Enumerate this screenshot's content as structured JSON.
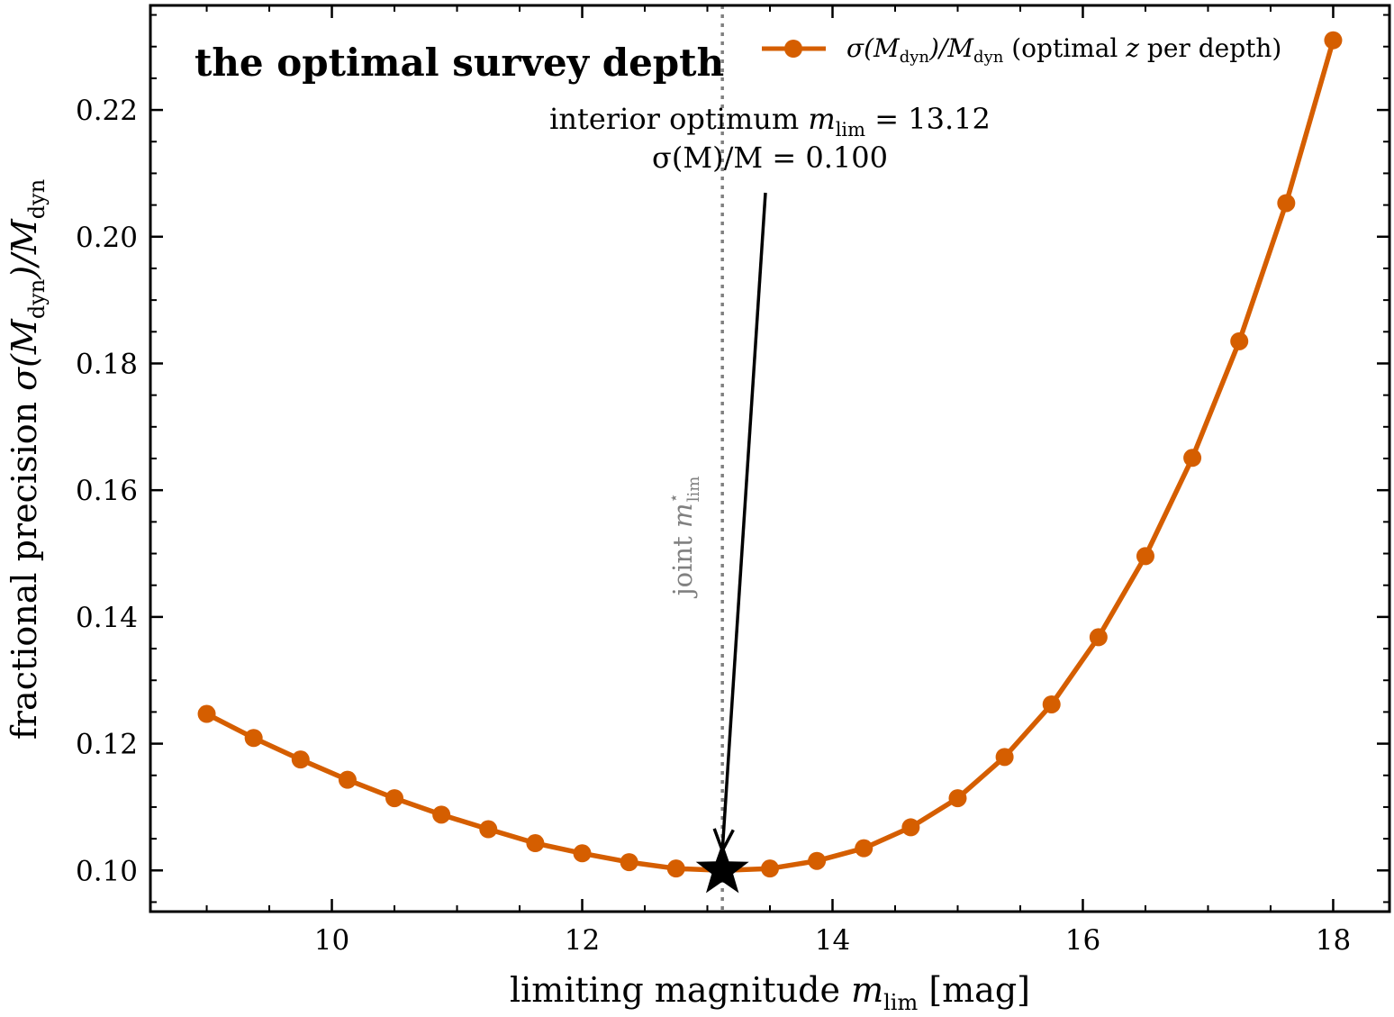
{
  "chart_data": {
    "type": "line",
    "title": "the optimal survey depth",
    "xlabel": {
      "main": "limiting magnitude  ",
      "sym": "m",
      "sub": "lim",
      "unit": "  [mag]"
    },
    "ylabel": {
      "main": "fractional precision  ",
      "sym": "σ(M",
      "sub": "dyn",
      "mid": ")/M",
      "sub2": "dyn"
    },
    "xlim": [
      8.55,
      18.45
    ],
    "ylim": [
      0.0935,
      0.2365
    ],
    "xticks": [
      10,
      12,
      14,
      16,
      18
    ],
    "xtick_labels": [
      "10",
      "12",
      "14",
      "16",
      "18"
    ],
    "yticks": [
      0.1,
      0.12,
      0.14,
      0.16,
      0.18,
      0.2,
      0.22
    ],
    "ytick_labels": [
      "0.10",
      "0.12",
      "0.14",
      "0.16",
      "0.18",
      "0.20",
      "0.22"
    ],
    "grid": false,
    "legend_position": "top-right",
    "series": [
      {
        "name": "σ(M_dyn)/M_dyn (optimal z per depth)",
        "color": "#d55e00",
        "marker": "circle",
        "x": [
          9.0,
          9.375,
          9.75,
          10.125,
          10.5,
          10.875,
          11.25,
          11.625,
          12.0,
          12.375,
          12.75,
          13.125,
          13.5,
          13.875,
          14.25,
          14.625,
          15.0,
          15.375,
          15.75,
          16.125,
          16.5,
          16.875,
          17.25,
          17.625,
          18.0
        ],
        "y": [
          0.1247,
          0.1209,
          0.1175,
          0.1143,
          0.1114,
          0.1088,
          0.1065,
          0.1043,
          0.1027,
          0.1013,
          0.1003,
          0.1,
          0.1003,
          0.1015,
          0.1035,
          0.1068,
          0.1114,
          0.1179,
          0.1262,
          0.1368,
          0.1496,
          0.1651,
          0.1835,
          0.2053,
          0.231
        ]
      }
    ],
    "legend": {
      "sym": "σ(M",
      "sub": "dyn",
      "mid": ")/M",
      "sub2": "dyn",
      "rest1": " (optimal ",
      "z": "z",
      "rest2": " per depth)"
    },
    "optimum": {
      "x": 13.12,
      "y": 0.1,
      "marker": "star",
      "line1_prefix": "interior optimum ",
      "line1_sym": "m",
      "line1_sub": "lim",
      "line1_value": " = 13.12",
      "line2": "σ(M)/M = 0.100",
      "vline_label_prefix": "joint ",
      "vline_label_sym": "m",
      "vline_label_sup": "⋆",
      "vline_label_sub": "lim",
      "vline_color": "#808080"
    }
  }
}
